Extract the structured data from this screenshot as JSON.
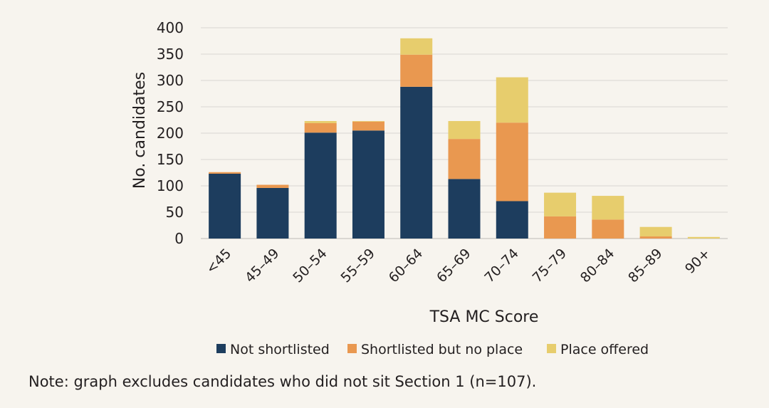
{
  "chart_data": {
    "type": "bar",
    "stacked": true,
    "xlabel": "TSA MC Score",
    "ylabel": "No. candidates",
    "ylim": [
      0,
      400
    ],
    "yticks": [
      0,
      50,
      100,
      150,
      200,
      250,
      300,
      350,
      400
    ],
    "grid": true,
    "legend_position": "bottom",
    "categories": [
      "<45",
      "45–49",
      "50–54",
      "55–59",
      "60–64",
      "65–69",
      "70–74",
      "75–79",
      "80–84",
      "85–89",
      "90+"
    ],
    "series": [
      {
        "name": "Not shortlisted",
        "color": "#1d3d5e",
        "values": [
          123,
          96,
          201,
          205,
          288,
          113,
          71,
          0,
          0,
          0,
          0
        ]
      },
      {
        "name": "Shortlisted but no place",
        "color": "#e99850",
        "values": [
          3,
          6,
          18,
          17,
          61,
          76,
          149,
          42,
          36,
          4,
          0
        ]
      },
      {
        "name": "Place offered",
        "color": "#e7cd6d",
        "values": [
          0,
          0,
          4,
          1,
          31,
          34,
          86,
          45,
          45,
          18,
          3
        ]
      }
    ]
  },
  "note": "Note: graph excludes candidates who did not sit Section 1 (n=107)."
}
